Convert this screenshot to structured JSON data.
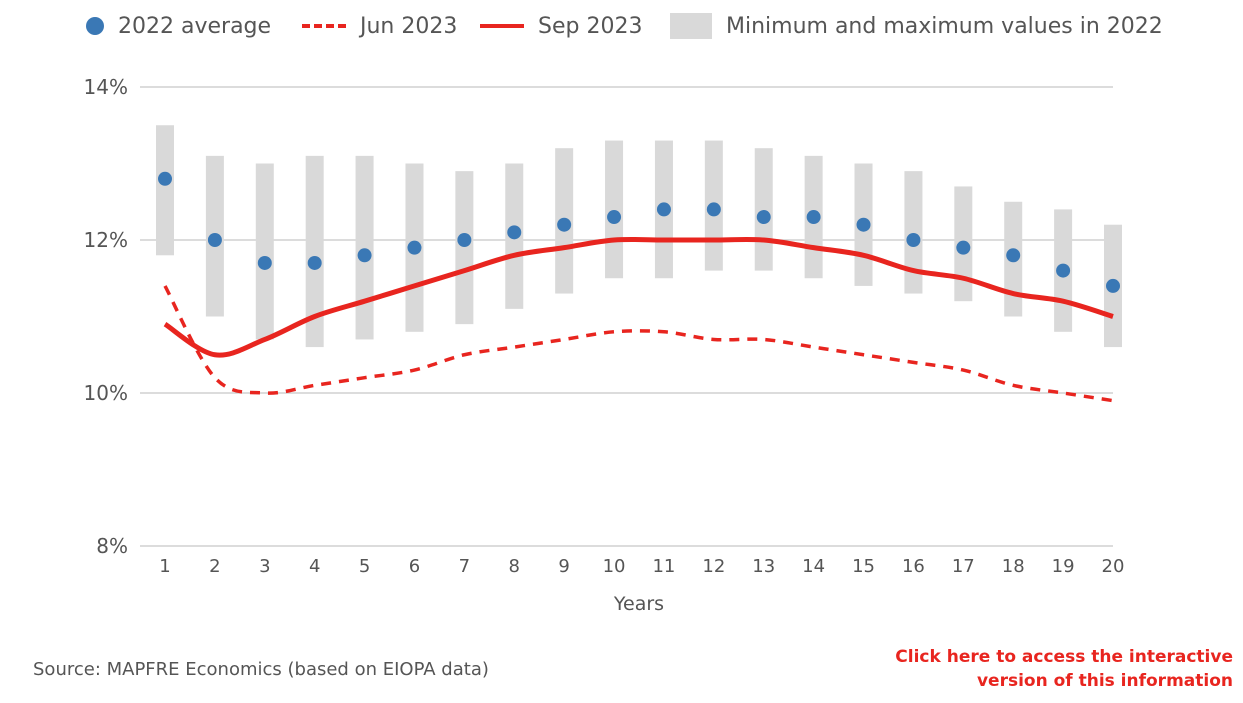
{
  "legend": {
    "avg": "2022 average",
    "jun": "Jun 2023",
    "sep": "Sep 2023",
    "range": "Minimum and maximum values in 2022"
  },
  "footer": {
    "source": "Source: MAPFRE Economics (based on EIOPA data)",
    "cta_line1": "Click here to access the interactive",
    "cta_line2": "version of this information"
  },
  "colors": {
    "avg": "#3a78b5",
    "line": "#e8251f",
    "range": "#d9d9d9",
    "grid": "#c8c8c8"
  },
  "chart_data": {
    "type": "line",
    "xlabel": "Years",
    "ylabel": "",
    "ylim": [
      8,
      14
    ],
    "yticks": [
      8,
      10,
      12,
      14
    ],
    "ytick_labels": [
      "8%",
      "10%",
      "12%",
      "14%"
    ],
    "x": [
      1,
      2,
      3,
      4,
      5,
      6,
      7,
      8,
      9,
      10,
      11,
      12,
      13,
      14,
      15,
      16,
      17,
      18,
      19,
      20
    ],
    "x_labels": [
      "1",
      "2",
      "3",
      "4",
      "5",
      "6",
      "7",
      "8",
      "9",
      "10",
      "11",
      "12",
      "13",
      "14",
      "15",
      "16",
      "17",
      "18",
      "19",
      "20"
    ],
    "grid": "horizontal",
    "legend_position": "top",
    "series": [
      {
        "name": "Minimum and maximum values in 2022",
        "kind": "range",
        "min": [
          11.8,
          11.0,
          10.7,
          10.6,
          10.7,
          10.8,
          10.9,
          11.1,
          11.3,
          11.5,
          11.5,
          11.6,
          11.6,
          11.5,
          11.4,
          11.3,
          11.2,
          11.0,
          10.8,
          10.6
        ],
        "max": [
          13.5,
          13.1,
          13.0,
          13.1,
          13.1,
          13.0,
          12.9,
          13.0,
          13.2,
          13.3,
          13.3,
          13.3,
          13.2,
          13.1,
          13.0,
          12.9,
          12.7,
          12.5,
          12.4,
          12.2
        ]
      },
      {
        "name": "2022 average",
        "kind": "scatter",
        "values": [
          12.8,
          12.0,
          11.7,
          11.7,
          11.8,
          11.9,
          12.0,
          12.1,
          12.2,
          12.3,
          12.4,
          12.4,
          12.3,
          12.3,
          12.2,
          12.0,
          11.9,
          11.8,
          11.6,
          11.4
        ]
      },
      {
        "name": "Jun 2023",
        "kind": "dashed",
        "values": [
          11.4,
          10.2,
          10.0,
          10.1,
          10.2,
          10.3,
          10.5,
          10.6,
          10.7,
          10.8,
          10.8,
          10.7,
          10.7,
          10.6,
          10.5,
          10.4,
          10.3,
          10.1,
          10.0,
          9.9
        ]
      },
      {
        "name": "Sep 2023",
        "kind": "solid",
        "values": [
          10.9,
          10.5,
          10.7,
          11.0,
          11.2,
          11.4,
          11.6,
          11.8,
          11.9,
          12.0,
          12.0,
          12.0,
          12.0,
          11.9,
          11.8,
          11.6,
          11.5,
          11.3,
          11.2,
          11.0
        ]
      }
    ]
  }
}
